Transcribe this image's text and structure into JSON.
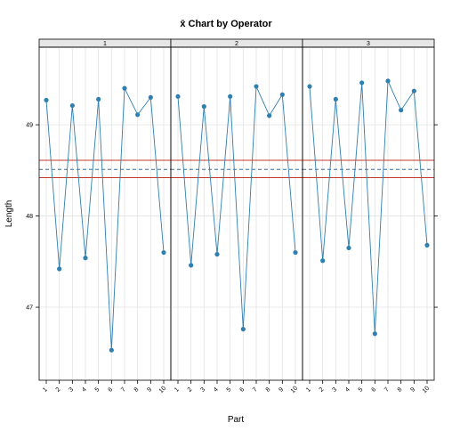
{
  "chart_data": {
    "type": "line",
    "title": "x̄ Chart by Operator",
    "xlabel": "Part",
    "ylabel": "Length",
    "categories": [
      "1",
      "2",
      "3",
      "4",
      "5",
      "6",
      "7",
      "8",
      "9",
      "10"
    ],
    "ylim": [
      46.2,
      49.85
    ],
    "y_ticks": [
      47,
      48,
      49
    ],
    "grid": true,
    "panels": [
      {
        "strip": "1",
        "values": [
          49.27,
          47.42,
          49.21,
          47.54,
          49.28,
          46.53,
          49.4,
          49.11,
          49.3,
          47.6
        ]
      },
      {
        "strip": "2",
        "values": [
          49.31,
          47.46,
          49.2,
          47.58,
          49.31,
          46.76,
          49.42,
          49.1,
          49.33,
          47.6
        ]
      },
      {
        "strip": "3",
        "values": [
          49.42,
          47.51,
          49.28,
          47.65,
          49.46,
          46.71,
          49.48,
          49.16,
          49.37,
          47.68
        ]
      }
    ],
    "reference_lines": {
      "center": 48.51,
      "upper": 48.61,
      "lower": 48.42
    },
    "colors": {
      "series": "#2f7fb0",
      "control_limits": "#c0392b",
      "center_line": "#3a6f9a",
      "grid": "#e3e3e3",
      "strip": "#e6e6e6"
    }
  }
}
